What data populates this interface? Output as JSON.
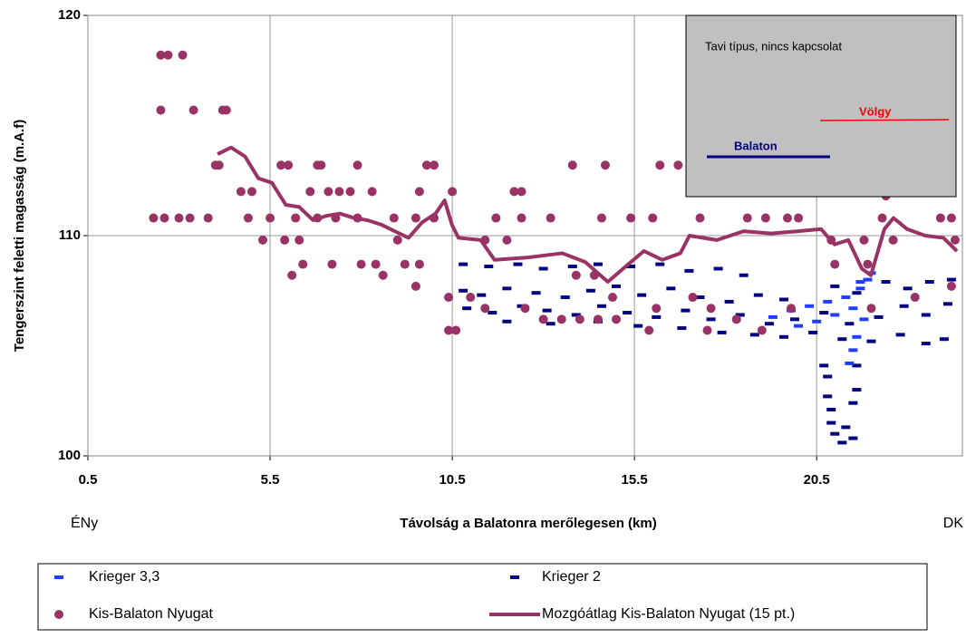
{
  "chart_data": {
    "type": "scatter",
    "xlabel": "Távolság a Balatonra merőlegesen (km)",
    "ylabel": "Tengerszint feletti magasság (m.A.f)",
    "left_note": "ÉNy",
    "right_note": "DK",
    "inset": {
      "title": "Tavi típus, nincs kapcsolat",
      "upper_label": "Völgy",
      "lower_label": "Balaton"
    },
    "xlim": [
      0.5,
      24.5
    ],
    "ylim": [
      100,
      120
    ],
    "xticks": [
      0.5,
      5.5,
      10.5,
      15.5,
      20.5
    ],
    "yticks": [
      100,
      110,
      120
    ],
    "grid": true,
    "legend": "bottom",
    "series": [
      {
        "name": "Krieger 3,3",
        "color": "#1f3fff",
        "marker": "dash",
        "x": [
          19.3,
          19.8,
          20.3,
          20.8,
          21.3,
          21.7,
          21.9,
          21.5,
          21.0,
          20.5,
          20.0,
          21.8,
          21.6,
          21.5,
          21.4,
          21.7,
          22.0
        ],
        "values": [
          106.3,
          106.6,
          106.8,
          107.0,
          107.2,
          107.6,
          108.0,
          106.7,
          106.4,
          106.1,
          105.9,
          106.2,
          105.4,
          104.8,
          104.2,
          107.9,
          108.3
        ]
      },
      {
        "name": "Krieger 2",
        "color": "#000080",
        "marker": "dash",
        "x": [
          10.8,
          11.5,
          12.3,
          13.0,
          13.8,
          14.5,
          15.4,
          16.2,
          17.0,
          17.8,
          18.5,
          10.8,
          11.3,
          12.0,
          12.8,
          13.6,
          14.3,
          15.0,
          15.7,
          16.5,
          17.3,
          18.1,
          18.9,
          19.6,
          21.0,
          21.6,
          22.4,
          23.0,
          23.6,
          24.2,
          10.9,
          11.6,
          12.4,
          13.1,
          13.9,
          14.6,
          15.3,
          16.1,
          16.9,
          17.6,
          18.4,
          19.2,
          19.9,
          20.7,
          21.4,
          22.2,
          22.9,
          23.5,
          24.1,
          12.0,
          13.2,
          14.5,
          15.6,
          16.8,
          17.9,
          18.8,
          19.6,
          20.4,
          21.2,
          22.0,
          22.8,
          23.5,
          24.0,
          20.7,
          20.8,
          20.8,
          20.9,
          20.9,
          21.0,
          21.2,
          21.5,
          21.3,
          21.5,
          21.6,
          21.6
        ],
        "values": [
          108.7,
          108.6,
          108.7,
          108.5,
          108.6,
          108.7,
          108.6,
          108.7,
          108.4,
          108.5,
          108.2,
          107.5,
          107.3,
          107.6,
          107.4,
          107.2,
          107.5,
          107.7,
          107.3,
          107.6,
          107.2,
          107.0,
          107.3,
          107.1,
          107.7,
          107.4,
          107.9,
          107.6,
          107.9,
          108.0,
          106.7,
          106.5,
          106.8,
          106.6,
          106.4,
          106.8,
          106.5,
          106.3,
          106.6,
          106.2,
          106.4,
          106.0,
          106.2,
          106.5,
          106.0,
          106.3,
          106.8,
          106.4,
          106.9,
          106.1,
          106.0,
          106.1,
          105.9,
          105.8,
          105.6,
          105.5,
          105.4,
          105.6,
          105.3,
          105.2,
          105.5,
          105.1,
          105.3,
          104.1,
          103.6,
          102.7,
          102.1,
          101.5,
          101.0,
          100.6,
          100.8,
          101.3,
          102.4,
          103.0,
          104.1
        ]
      },
      {
        "name": "Kis-Balaton Nyugat",
        "color": "#993366",
        "marker": "circle",
        "x": [
          2.5,
          2.7,
          3.1,
          2.5,
          3.4,
          4.2,
          4.3,
          4.0,
          4.1,
          5.8,
          6.0,
          6.8,
          6.9,
          7.9,
          9.8,
          10.0,
          13.8,
          14.7,
          16.2,
          16.7,
          17.6,
          21.8,
          4.7,
          5.0,
          6.6,
          7.1,
          7.4,
          7.7,
          8.3,
          9.6,
          10.5,
          12.2,
          12.4,
          20.6,
          22.4,
          2.3,
          2.6,
          3.0,
          3.3,
          3.8,
          4.9,
          5.5,
          6.2,
          6.8,
          7.3,
          7.9,
          8.9,
          9.5,
          10.0,
          11.7,
          12.4,
          13.2,
          14.6,
          15.4,
          16.0,
          17.3,
          18.6,
          19.1,
          19.7,
          20.0,
          22.3,
          23.9,
          24.2,
          5.3,
          5.9,
          6.3,
          9.0,
          11.4,
          12.0,
          20.9,
          21.8,
          22.6,
          24.3,
          6.4,
          7.2,
          8.0,
          8.4,
          9.2,
          9.6,
          21.0,
          21.9,
          6.1,
          8.6,
          13.9,
          14.4,
          9.5,
          10.4,
          11.0,
          14.9,
          17.1,
          23.2,
          24.2,
          11.4,
          12.5,
          16.1,
          17.6,
          19.8,
          22.0,
          13.0,
          13.5,
          14.0,
          14.5,
          15.0,
          18.3,
          10.4,
          10.6,
          15.9,
          17.5,
          19.0
        ],
        "values": [
          118.2,
          118.2,
          118.2,
          115.7,
          115.7,
          115.7,
          115.7,
          113.2,
          113.2,
          113.2,
          113.2,
          113.2,
          113.2,
          113.2,
          113.2,
          113.2,
          113.2,
          113.2,
          113.2,
          113.2,
          113.2,
          113.2,
          112,
          112,
          112,
          112,
          112,
          112,
          112,
          112,
          112,
          112,
          112,
          112,
          111.8,
          110.8,
          110.8,
          110.8,
          110.8,
          110.8,
          110.8,
          110.8,
          110.8,
          110.8,
          110.8,
          110.8,
          110.8,
          110.8,
          110.8,
          110.8,
          110.8,
          110.8,
          110.8,
          110.8,
          110.8,
          110.8,
          110.8,
          110.8,
          110.8,
          110.8,
          110.8,
          110.8,
          110.8,
          109.8,
          109.8,
          109.8,
          109.8,
          109.8,
          109.8,
          109.8,
          109.8,
          109.8,
          109.8,
          108.7,
          108.7,
          108.7,
          108.7,
          108.7,
          108.7,
          108.7,
          108.7,
          108.2,
          108.2,
          108.2,
          108.2,
          107.7,
          107.2,
          107.2,
          107.2,
          107.2,
          107.2,
          107.7,
          106.7,
          106.7,
          106.7,
          106.7,
          106.7,
          106.7,
          106.2,
          106.2,
          106.2,
          106.2,
          106.2,
          106.2,
          105.7,
          105.7,
          105.7,
          105.7,
          105.7
        ]
      },
      {
        "name": "Mozgóátlag Kis-Balaton Nyugat (15 pt.)",
        "color": "#993366",
        "marker": "line",
        "x": [
          4.06,
          4.43,
          4.81,
          5.18,
          5.55,
          5.93,
          6.3,
          6.68,
          7.05,
          7.42,
          7.8,
          8.17,
          8.55,
          8.92,
          9.3,
          9.67,
          10.04,
          10.29,
          10.49,
          10.67,
          11.28,
          11.66,
          12.53,
          13.52,
          14.15,
          14.77,
          15.26,
          15.76,
          16.26,
          16.76,
          17.01,
          17.76,
          18.5,
          19.25,
          20.0,
          20.62,
          20.99,
          21.37,
          21.74,
          21.99,
          22.36,
          22.61,
          22.98,
          23.48,
          23.98,
          24.35
        ],
        "values": [
          113.7,
          114,
          113.6,
          112.6,
          112.4,
          111.4,
          111.3,
          110.7,
          110.9,
          111,
          110.8,
          110.7,
          110.5,
          110.2,
          109.9,
          110.6,
          111,
          111.6,
          110.5,
          109.9,
          109.8,
          108.9,
          109,
          109.2,
          108.8,
          107.9,
          108.6,
          109.3,
          108.9,
          109.2,
          110,
          109.8,
          110.2,
          110.1,
          110.2,
          110.3,
          109.6,
          109.8,
          108.5,
          108.2,
          110.3,
          110.8,
          110.3,
          110,
          109.9,
          109.3
        ]
      }
    ]
  }
}
